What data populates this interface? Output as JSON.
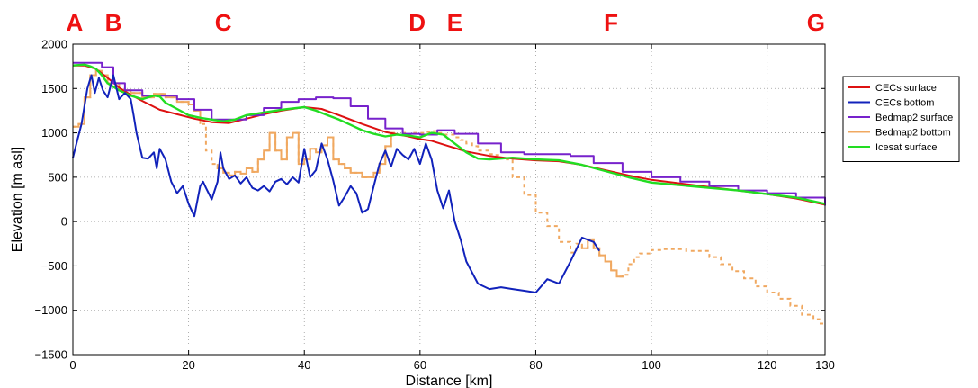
{
  "chart_data": {
    "type": "line",
    "title": "",
    "xlabel": "Distance [km]",
    "ylabel": "Elevation [m asl]",
    "xlim": [
      0,
      130
    ],
    "ylim": [
      -1500,
      2000
    ],
    "xticks": [
      "0",
      "20",
      "40",
      "60",
      "80",
      "100",
      "120",
      "130"
    ],
    "xtick_values": [
      0,
      20,
      40,
      60,
      80,
      100,
      120,
      130
    ],
    "yticks": [
      "−1500",
      "−1000",
      "−500",
      "0",
      "500",
      "1000",
      "1500",
      "2000"
    ],
    "ytick_values": [
      -1500,
      -1000,
      -500,
      0,
      500,
      1000,
      1500,
      2000
    ],
    "grid": true,
    "legend_position": "outside-top-right",
    "markers": [
      {
        "label": "A",
        "x": 0.3
      },
      {
        "label": "B",
        "x": 7.0
      },
      {
        "label": "C",
        "x": 26.0
      },
      {
        "label": "D",
        "x": 59.5
      },
      {
        "label": "E",
        "x": 66.0
      },
      {
        "label": "F",
        "x": 93.0
      },
      {
        "label": "G",
        "x": 130.0
      }
    ],
    "series": [
      {
        "name": "CECs surface",
        "color": "#dd1111",
        "style": "solid",
        "step": false,
        "x": [
          0,
          2,
          4,
          6,
          8,
          10,
          12,
          15,
          18,
          21,
          24,
          27,
          30,
          33,
          36,
          40,
          43,
          46,
          50,
          54,
          58,
          60,
          62,
          65,
          68,
          72,
          76,
          80,
          84,
          88,
          92,
          96,
          100,
          105,
          110,
          115,
          120,
          125,
          130
        ],
        "y": [
          1760,
          1760,
          1720,
          1620,
          1510,
          1430,
          1360,
          1260,
          1210,
          1160,
          1120,
          1110,
          1160,
          1210,
          1250,
          1290,
          1270,
          1200,
          1100,
          1010,
          960,
          930,
          910,
          850,
          790,
          740,
          710,
          690,
          680,
          640,
          580,
          520,
          470,
          430,
          390,
          350,
          310,
          260,
          190
        ]
      },
      {
        "name": "CECs bottom",
        "color": "#1122bb",
        "style": "solid",
        "step": false,
        "x": [
          0,
          0.7,
          1.5,
          2.5,
          3.2,
          3.8,
          4.5,
          5.2,
          6,
          7,
          8,
          9,
          10,
          10.5,
          11,
          12,
          13,
          14,
          14.5,
          15,
          16,
          17,
          18,
          19,
          20,
          21,
          22,
          22.5,
          23,
          24,
          25,
          25.5,
          26,
          27,
          28,
          29,
          30,
          31,
          32,
          33,
          34,
          35,
          36,
          37,
          38,
          39,
          40,
          41,
          42,
          43,
          44,
          45,
          46,
          47,
          48,
          49,
          50,
          51,
          52,
          53,
          54,
          55,
          56,
          57,
          58,
          59,
          60,
          61,
          62,
          63,
          64,
          65,
          66,
          67,
          68,
          70,
          72,
          74,
          76,
          78,
          80,
          82,
          84,
          86,
          88,
          90,
          91
        ],
        "y": [
          720,
          900,
          1100,
          1500,
          1650,
          1450,
          1620,
          1480,
          1400,
          1650,
          1380,
          1450,
          1380,
          1200,
          1000,
          720,
          710,
          780,
          600,
          820,
          700,
          450,
          320,
          400,
          200,
          60,
          400,
          450,
          380,
          250,
          450,
          780,
          600,
          480,
          520,
          430,
          500,
          380,
          350,
          400,
          340,
          450,
          480,
          420,
          500,
          440,
          820,
          500,
          580,
          880,
          700,
          460,
          180,
          280,
          400,
          320,
          100,
          140,
          400,
          650,
          800,
          620,
          820,
          750,
          700,
          820,
          650,
          880,
          700,
          350,
          150,
          350,
          0,
          -200,
          -450,
          -700,
          -760,
          -740,
          -760,
          -780,
          -800,
          -650,
          -700,
          -450,
          -180,
          -230,
          -330
        ]
      },
      {
        "name": "Bedmap2 surface",
        "color": "#7722cc",
        "style": "solid",
        "step": true,
        "x": [
          0,
          3,
          5,
          7,
          9,
          12,
          15,
          18,
          21,
          24,
          27,
          30,
          33,
          36,
          39,
          42,
          45,
          48,
          51,
          54,
          57,
          60,
          63,
          66,
          70,
          74,
          78,
          82,
          86,
          90,
          95,
          100,
          105,
          110,
          115,
          120,
          125,
          130
        ],
        "y": [
          1790,
          1790,
          1740,
          1560,
          1480,
          1420,
          1420,
          1380,
          1260,
          1150,
          1150,
          1200,
          1280,
          1350,
          1380,
          1400,
          1390,
          1300,
          1160,
          1050,
          990,
          980,
          1030,
          990,
          880,
          780,
          760,
          760,
          740,
          660,
          560,
          500,
          450,
          400,
          350,
          320,
          270,
          180
        ]
      },
      {
        "name": "Bedmap2 bottom",
        "color": "#f0a860",
        "style": "mixed",
        "step": true,
        "x": [
          0,
          1,
          2,
          3,
          4,
          5,
          6,
          8,
          10,
          12,
          14,
          16,
          18,
          20,
          21,
          22,
          23,
          24,
          25,
          26,
          27,
          28,
          29,
          30,
          31,
          32,
          33,
          34,
          35,
          36,
          37,
          38,
          39,
          40,
          41,
          42,
          43,
          44,
          45,
          46,
          47,
          48,
          49,
          50,
          51,
          52,
          53,
          54,
          55,
          56,
          57,
          58,
          59,
          60,
          61,
          62,
          63,
          64,
          65,
          66,
          67,
          68,
          69,
          70,
          71,
          72,
          73,
          74,
          75,
          76,
          78,
          80,
          82,
          84,
          86,
          87,
          88,
          89,
          90,
          91,
          92,
          93,
          94,
          95,
          96,
          97,
          98,
          100,
          102,
          104,
          106,
          108,
          110,
          112,
          114,
          116,
          118,
          120,
          122,
          124,
          126,
          128,
          129,
          130
        ],
        "y": [
          1070,
          1100,
          1400,
          1650,
          1700,
          1650,
          1560,
          1480,
          1450,
          1400,
          1440,
          1400,
          1350,
          1320,
          1250,
          1100,
          800,
          650,
          600,
          550,
          520,
          560,
          540,
          600,
          560,
          700,
          800,
          1000,
          800,
          700,
          950,
          1000,
          650,
          700,
          820,
          780,
          860,
          950,
          700,
          650,
          600,
          550,
          550,
          500,
          500,
          550,
          650,
          850,
          1000,
          980,
          1000,
          980,
          1000,
          1000,
          1010,
          1020,
          1000,
          980,
          980,
          950,
          920,
          880,
          850,
          800,
          800,
          760,
          750,
          720,
          700,
          500,
          300,
          100,
          -50,
          -230,
          -350,
          -250,
          -300,
          -200,
          -300,
          -380,
          -450,
          -550,
          -620,
          -600,
          -480,
          -400,
          -360,
          -320,
          -310,
          -310,
          -330,
          -330,
          -400,
          -480,
          -560,
          -640,
          -730,
          -800,
          -870,
          -950,
          -1050,
          -1100,
          -1150,
          -1150
        ],
        "solid_segments": [
          [
            0,
            22
          ],
          [
            24.5,
            55
          ],
          [
            87.5,
            95
          ]
        ]
      },
      {
        "name": "Icesat surface",
        "color": "#22dd22",
        "style": "solid",
        "step": false,
        "x": [
          0,
          2,
          3,
          4,
          5,
          6,
          7,
          8,
          10,
          12,
          14,
          15,
          16,
          18,
          20,
          22,
          24,
          26,
          28,
          30,
          33,
          36,
          40,
          42,
          44,
          46,
          48,
          50,
          52,
          54,
          56,
          58,
          60,
          62,
          64,
          66,
          68,
          70,
          72,
          76,
          80,
          84,
          88,
          92,
          96,
          100,
          105,
          110,
          115,
          120,
          125,
          130
        ],
        "y": [
          1760,
          1770,
          1750,
          1720,
          1650,
          1560,
          1520,
          1480,
          1420,
          1380,
          1420,
          1410,
          1340,
          1270,
          1200,
          1170,
          1150,
          1130,
          1150,
          1200,
          1230,
          1260,
          1290,
          1250,
          1200,
          1150,
          1090,
          1030,
          990,
          960,
          980,
          970,
          950,
          1000,
          980,
          880,
          780,
          710,
          700,
          720,
          700,
          690,
          640,
          570,
          500,
          440,
          410,
          380,
          350,
          310,
          270,
          200
        ]
      }
    ]
  }
}
